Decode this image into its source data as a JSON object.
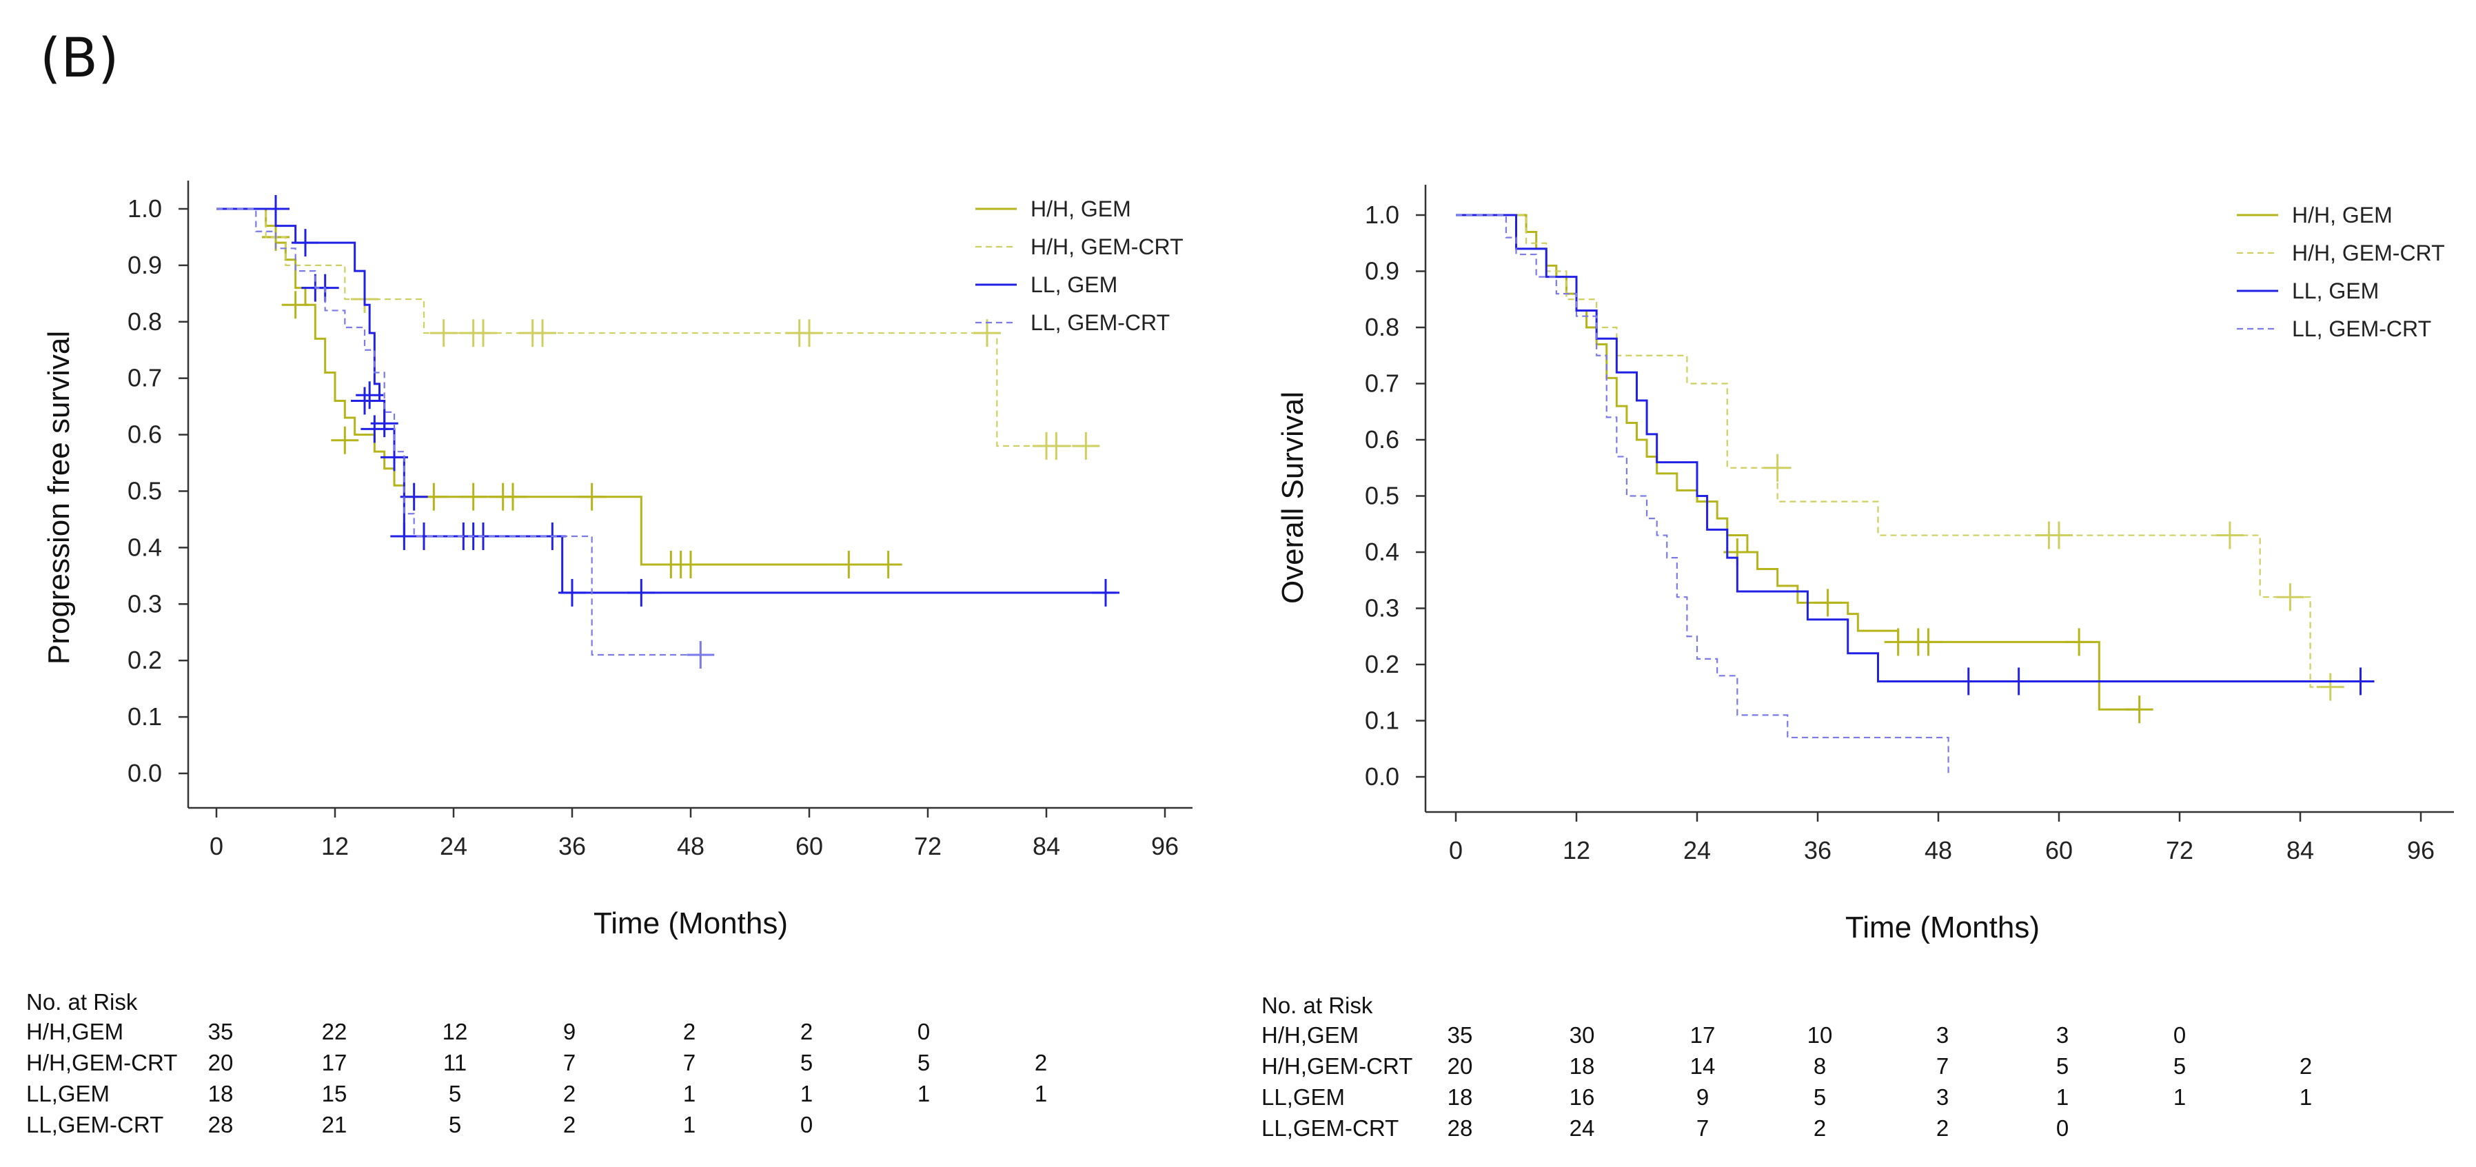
{
  "panel_label": "(B)",
  "colors": {
    "hh_gem": "#b5b41a",
    "hh_gemcrt": "#cfcf60",
    "ll_gem": "#2121e6",
    "ll_gemcrt": "#7a7ae8",
    "axis": "#333333"
  },
  "chart_data": [
    {
      "type": "line",
      "id": "pfs",
      "title": "",
      "xlabel": "Time (Months)",
      "ylabel": "Progression free survival",
      "xlim": [
        0,
        96
      ],
      "ylim": [
        0,
        1
      ],
      "xticks": [
        "0",
        "12",
        "24",
        "36",
        "48",
        "60",
        "72",
        "84",
        "96"
      ],
      "yticks": [
        "0.0",
        "0.1",
        "0.2",
        "0.3",
        "0.4",
        "0.5",
        "0.6",
        "0.7",
        "0.8",
        "0.9",
        "1.0"
      ],
      "grid": false,
      "legend_position": "top-right",
      "series": [
        {
          "name": "H/H, GEM",
          "color_key": "hh_gem",
          "dash": false,
          "steps": [
            [
              0,
              1.0
            ],
            [
              5,
              0.97
            ],
            [
              6,
              0.94
            ],
            [
              7,
              0.91
            ],
            [
              8,
              0.86
            ],
            [
              9,
              0.83
            ],
            [
              10,
              0.77
            ],
            [
              11,
              0.71
            ],
            [
              12,
              0.66
            ],
            [
              13,
              0.63
            ],
            [
              14,
              0.6
            ],
            [
              16,
              0.57
            ],
            [
              17,
              0.54
            ],
            [
              18,
              0.51
            ],
            [
              19,
              0.49
            ],
            [
              43,
              0.37
            ],
            [
              69,
              0.37
            ]
          ],
          "censors": [
            [
              6,
              0.95
            ],
            [
              8,
              0.83
            ],
            [
              13,
              0.59
            ],
            [
              15,
              0.84
            ],
            [
              22,
              0.49
            ],
            [
              26,
              0.49
            ],
            [
              29,
              0.49
            ],
            [
              30,
              0.49
            ],
            [
              38,
              0.49
            ],
            [
              46,
              0.37
            ],
            [
              47,
              0.37
            ],
            [
              48,
              0.37
            ],
            [
              64,
              0.37
            ],
            [
              68,
              0.37
            ]
          ]
        },
        {
          "name": "H/H, GEM-CRT",
          "color_key": "hh_gemcrt",
          "dash": true,
          "steps": [
            [
              0,
              1.0
            ],
            [
              5,
              0.95
            ],
            [
              7,
              0.9
            ],
            [
              13,
              0.84
            ],
            [
              21,
              0.78
            ],
            [
              79,
              0.58
            ],
            [
              88,
              0.58
            ]
          ],
          "censors": [
            [
              15,
              0.84
            ],
            [
              23,
              0.78
            ],
            [
              26,
              0.78
            ],
            [
              27,
              0.78
            ],
            [
              32,
              0.78
            ],
            [
              33,
              0.78
            ],
            [
              59,
              0.78
            ],
            [
              60,
              0.78
            ],
            [
              78,
              0.78
            ],
            [
              84,
              0.58
            ],
            [
              85,
              0.58
            ],
            [
              88,
              0.58
            ]
          ]
        },
        {
          "name": "LL, GEM",
          "color_key": "ll_gem",
          "dash": false,
          "steps": [
            [
              0,
              1.0
            ],
            [
              6,
              0.97
            ],
            [
              8,
              0.94
            ],
            [
              14,
              0.89
            ],
            [
              15,
              0.83
            ],
            [
              15.5,
              0.78
            ],
            [
              16,
              0.69
            ],
            [
              16.5,
              0.66
            ],
            [
              17,
              0.61
            ],
            [
              18,
              0.56
            ],
            [
              19,
              0.42
            ],
            [
              34,
              0.42
            ],
            [
              35,
              0.32
            ],
            [
              91,
              0.32
            ]
          ],
          "censors": [
            [
              6,
              1.0
            ],
            [
              9,
              0.94
            ],
            [
              10,
              0.86
            ],
            [
              11,
              0.86
            ],
            [
              15,
              0.66
            ],
            [
              15.5,
              0.67
            ],
            [
              16,
              0.61
            ],
            [
              17,
              0.62
            ],
            [
              18,
              0.56
            ],
            [
              19,
              0.42
            ],
            [
              20,
              0.49
            ],
            [
              21,
              0.42
            ],
            [
              25,
              0.42
            ],
            [
              26,
              0.42
            ],
            [
              27,
              0.42
            ],
            [
              34,
              0.42
            ],
            [
              36,
              0.32
            ],
            [
              43,
              0.32
            ],
            [
              90,
              0.32
            ]
          ]
        },
        {
          "name": "LL, GEM-CRT",
          "color_key": "ll_gemcrt",
          "dash": true,
          "steps": [
            [
              0,
              1.0
            ],
            [
              4,
              0.96
            ],
            [
              6,
              0.93
            ],
            [
              8,
              0.89
            ],
            [
              10,
              0.86
            ],
            [
              11,
              0.82
            ],
            [
              13,
              0.79
            ],
            [
              15,
              0.75
            ],
            [
              16,
              0.71
            ],
            [
              17,
              0.64
            ],
            [
              18,
              0.57
            ],
            [
              19,
              0.46
            ],
            [
              20,
              0.42
            ],
            [
              38,
              0.21
            ],
            [
              50,
              0.21
            ]
          ],
          "censors": [
            [
              49,
              0.21
            ]
          ]
        }
      ],
      "risk_table": {
        "title": "No. at Risk",
        "rows": [
          {
            "label": "H/H,GEM",
            "values": [
              "35",
              "22",
              "12",
              "9",
              "2",
              "2",
              "0"
            ]
          },
          {
            "label": "H/H,GEM-CRT",
            "values": [
              "20",
              "17",
              "11",
              "7",
              "7",
              "5",
              "5",
              "2"
            ]
          },
          {
            "label": "LL,GEM",
            "values": [
              "18",
              "15",
              "5",
              "2",
              "1",
              "1",
              "1",
              "1"
            ]
          },
          {
            "label": "LL,GEM-CRT",
            "values": [
              "28",
              "21",
              "5",
              "2",
              "1",
              "0"
            ]
          }
        ]
      }
    },
    {
      "type": "line",
      "id": "os",
      "title": "",
      "xlabel": "Time (Months)",
      "ylabel": "Overall Survival",
      "xlim": [
        0,
        96
      ],
      "ylim": [
        0,
        1
      ],
      "xticks": [
        "0",
        "12",
        "24",
        "36",
        "48",
        "60",
        "72",
        "84",
        "96"
      ],
      "yticks": [
        "0.0",
        "0.1",
        "0.2",
        "0.3",
        "0.4",
        "0.5",
        "0.6",
        "0.7",
        "0.8",
        "0.9",
        "1.0"
      ],
      "grid": false,
      "legend_position": "top-right",
      "series": [
        {
          "name": "H/H, GEM",
          "color_key": "hh_gem",
          "dash": false,
          "steps": [
            [
              0,
              1.0
            ],
            [
              7,
              0.97
            ],
            [
              8,
              0.94
            ],
            [
              9,
              0.91
            ],
            [
              10,
              0.89
            ],
            [
              11,
              0.86
            ],
            [
              12,
              0.83
            ],
            [
              13,
              0.8
            ],
            [
              14,
              0.77
            ],
            [
              15,
              0.71
            ],
            [
              16,
              0.66
            ],
            [
              17,
              0.63
            ],
            [
              18,
              0.6
            ],
            [
              19,
              0.57
            ],
            [
              20,
              0.54
            ],
            [
              22,
              0.51
            ],
            [
              24,
              0.49
            ],
            [
              26,
              0.46
            ],
            [
              27,
              0.43
            ],
            [
              29,
              0.4
            ],
            [
              30,
              0.37
            ],
            [
              32,
              0.34
            ],
            [
              34,
              0.31
            ],
            [
              39,
              0.29
            ],
            [
              40,
              0.26
            ],
            [
              44,
              0.24
            ],
            [
              64,
              0.12
            ],
            [
              68,
              0.12
            ]
          ],
          "censors": [
            [
              28,
              0.4
            ],
            [
              37,
              0.31
            ],
            [
              44,
              0.24
            ],
            [
              46,
              0.24
            ],
            [
              47,
              0.24
            ],
            [
              62,
              0.24
            ],
            [
              68,
              0.12
            ]
          ]
        },
        {
          "name": "H/H, GEM-CRT",
          "color_key": "hh_gemcrt",
          "dash": true,
          "steps": [
            [
              0,
              1.0
            ],
            [
              7,
              0.95
            ],
            [
              9,
              0.9
            ],
            [
              11,
              0.85
            ],
            [
              14,
              0.8
            ],
            [
              16,
              0.75
            ],
            [
              23,
              0.7
            ],
            [
              27,
              0.55
            ],
            [
              32,
              0.49
            ],
            [
              42,
              0.43
            ],
            [
              80,
              0.32
            ],
            [
              85,
              0.16
            ],
            [
              88,
              0.16
            ]
          ],
          "censors": [
            [
              32,
              0.55
            ],
            [
              59,
              0.43
            ],
            [
              60,
              0.43
            ],
            [
              77,
              0.43
            ],
            [
              83,
              0.32
            ],
            [
              87,
              0.16
            ]
          ]
        },
        {
          "name": "LL, GEM",
          "color_key": "ll_gem",
          "dash": false,
          "steps": [
            [
              0,
              1.0
            ],
            [
              6,
              0.94
            ],
            [
              9,
              0.89
            ],
            [
              12,
              0.83
            ],
            [
              14,
              0.78
            ],
            [
              16,
              0.72
            ],
            [
              18,
              0.67
            ],
            [
              19,
              0.61
            ],
            [
              20,
              0.56
            ],
            [
              24,
              0.5
            ],
            [
              25,
              0.44
            ],
            [
              27,
              0.39
            ],
            [
              28,
              0.33
            ],
            [
              35,
              0.28
            ],
            [
              39,
              0.22
            ],
            [
              42,
              0.17
            ],
            [
              91,
              0.17
            ]
          ],
          "censors": [
            [
              51,
              0.17
            ],
            [
              56,
              0.17
            ],
            [
              90,
              0.17
            ]
          ]
        },
        {
          "name": "LL, GEM-CRT",
          "color_key": "ll_gemcrt",
          "dash": true,
          "steps": [
            [
              0,
              1.0
            ],
            [
              5,
              0.96
            ],
            [
              6,
              0.93
            ],
            [
              8,
              0.89
            ],
            [
              10,
              0.86
            ],
            [
              12,
              0.82
            ],
            [
              14,
              0.75
            ],
            [
              15,
              0.64
            ],
            [
              16,
              0.57
            ],
            [
              17,
              0.5
            ],
            [
              19,
              0.46
            ],
            [
              20,
              0.43
            ],
            [
              21,
              0.39
            ],
            [
              22,
              0.32
            ],
            [
              23,
              0.25
            ],
            [
              24,
              0.21
            ],
            [
              26,
              0.18
            ],
            [
              28,
              0.11
            ],
            [
              30,
              0.11
            ],
            [
              33,
              0.07
            ],
            [
              48,
              0.07
            ],
            [
              49,
              0.0
            ]
          ],
          "censors": []
        }
      ],
      "risk_table": {
        "title": "No. at Risk",
        "rows": [
          {
            "label": "H/H,GEM",
            "values": [
              "35",
              "30",
              "17",
              "10",
              "3",
              "3",
              "0"
            ]
          },
          {
            "label": "H/H,GEM-CRT",
            "values": [
              "20",
              "18",
              "14",
              "8",
              "7",
              "5",
              "5",
              "2"
            ]
          },
          {
            "label": "LL,GEM",
            "values": [
              "18",
              "16",
              "9",
              "5",
              "3",
              "1",
              "1",
              "1"
            ]
          },
          {
            "label": "LL,GEM-CRT",
            "values": [
              "28",
              "24",
              "7",
              "2",
              "2",
              "0"
            ]
          }
        ]
      }
    }
  ]
}
